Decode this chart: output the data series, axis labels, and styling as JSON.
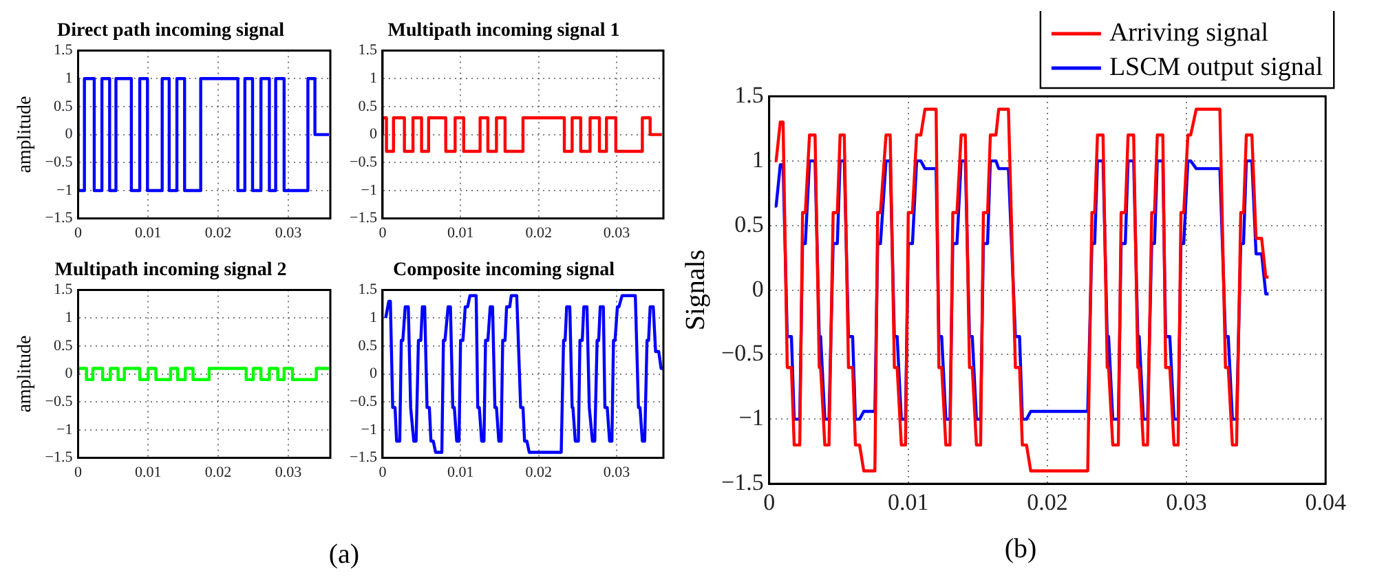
{
  "chart_data": [
    {
      "type": "step",
      "title": "Direct path incoming signal",
      "ylabel": "amplitude",
      "xlim": [
        0,
        0.036
      ],
      "xticks": [
        0,
        0.01,
        0.02,
        0.03
      ],
      "ylim": [
        -1.5,
        1.5
      ],
      "yticks": [
        -1.5,
        -1,
        -0.5,
        0,
        0.5,
        1,
        1.5
      ],
      "grid": true,
      "annotations": [
        "(a)"
      ],
      "x": [
        0,
        0.0009,
        0.0023,
        0.0034,
        0.0045,
        0.0054,
        0.0076,
        0.0088,
        0.0099,
        0.012,
        0.013,
        0.0141,
        0.0152,
        0.0175,
        0.0228,
        0.0238,
        0.0249,
        0.0261,
        0.0273,
        0.0282,
        0.0294,
        0.0328,
        0.0338,
        0.0349,
        0.0358
      ],
      "series": [
        {
          "color": "#0000ff",
          "values": [
            1,
            -1,
            1,
            -1,
            1,
            -1,
            1,
            -1,
            1,
            -1,
            1,
            -1,
            1,
            -1,
            1,
            -1,
            1,
            -1,
            1,
            -1,
            1,
            -1,
            1,
            0,
            0
          ]
        }
      ]
    },
    {
      "type": "step",
      "title": "Multipath incoming signal 1",
      "xlim": [
        0,
        0.036
      ],
      "xticks": [
        0,
        0.01,
        0.02,
        0.03
      ],
      "ylim": [
        -1.5,
        1.5
      ],
      "yticks": [
        -1.5,
        -1,
        -0.5,
        0,
        0.5,
        1,
        1.5
      ],
      "grid": true,
      "x": [
        0,
        0.0005,
        0.0014,
        0.0028,
        0.0039,
        0.005,
        0.0059,
        0.0081,
        0.0093,
        0.0104,
        0.0125,
        0.0135,
        0.0146,
        0.0157,
        0.018,
        0.0233,
        0.0243,
        0.0254,
        0.0266,
        0.0278,
        0.0287,
        0.0299,
        0.0333,
        0.0343,
        0.0354,
        0.0358
      ],
      "series": [
        {
          "color": "#ff0000",
          "values": [
            0,
            0.3,
            -0.3,
            0.3,
            -0.3,
            0.3,
            -0.3,
            0.3,
            -0.3,
            0.3,
            -0.3,
            0.3,
            -0.3,
            0.3,
            -0.3,
            0.3,
            -0.3,
            0.3,
            -0.3,
            0.3,
            -0.3,
            0.3,
            -0.3,
            0.3,
            0,
            0
          ]
        }
      ]
    },
    {
      "type": "step",
      "title": "Multipath incoming signal 2",
      "ylabel": "amplitude",
      "xlim": [
        0,
        0.036
      ],
      "xticks": [
        0,
        0.01,
        0.02,
        0.03
      ],
      "ylim": [
        -1.5,
        1.5
      ],
      "yticks": [
        -1.5,
        -1,
        -0.5,
        0,
        0.5,
        1,
        1.5
      ],
      "grid": true,
      "x": [
        0,
        0.0012,
        0.0021,
        0.0035,
        0.0046,
        0.0057,
        0.0066,
        0.0088,
        0.01,
        0.0111,
        0.0132,
        0.0142,
        0.0153,
        0.0164,
        0.0187,
        0.024,
        0.025,
        0.0261,
        0.0273,
        0.0285,
        0.0294,
        0.0306,
        0.034,
        0.035,
        0.0358
      ],
      "series": [
        {
          "color": "#00ff00",
          "values": [
            0,
            0.1,
            -0.1,
            0.1,
            -0.1,
            0.1,
            -0.1,
            0.1,
            -0.1,
            0.1,
            -0.1,
            0.1,
            -0.1,
            0.1,
            -0.1,
            0.1,
            -0.1,
            0.1,
            -0.1,
            0.1,
            -0.1,
            0.1,
            -0.1,
            0.1,
            0.1
          ]
        }
      ]
    },
    {
      "type": "line",
      "title": "Composite incoming signal",
      "xlim": [
        0,
        0.036
      ],
      "xticks": [
        0,
        0.01,
        0.02,
        0.03
      ],
      "ylim": [
        -1.5,
        1.5
      ],
      "yticks": [
        -1.5,
        -1,
        -0.5,
        0,
        0.5,
        1,
        1.5
      ],
      "grid": true,
      "x": [
        0.0004,
        0.0005,
        0.0008,
        0.001,
        0.0013,
        0.0016,
        0.0018,
        0.0022,
        0.0024,
        0.0026,
        0.0029,
        0.0033,
        0.0036,
        0.0037,
        0.004,
        0.0043,
        0.0046,
        0.0049,
        0.0051,
        0.0054,
        0.0057,
        0.006,
        0.0062,
        0.0065,
        0.0068,
        0.0076,
        0.0078,
        0.008,
        0.0084,
        0.0087,
        0.009,
        0.0092,
        0.0095,
        0.0098,
        0.01,
        0.0103,
        0.0106,
        0.0109,
        0.0112,
        0.012,
        0.0122,
        0.0124,
        0.0127,
        0.013,
        0.0132,
        0.0135,
        0.0138,
        0.0141,
        0.0144,
        0.0146,
        0.0149,
        0.0152,
        0.0154,
        0.0157,
        0.0159,
        0.0163,
        0.0165,
        0.0172,
        0.0177,
        0.018,
        0.0182,
        0.0185,
        0.0188,
        0.0229,
        0.0232,
        0.0234,
        0.0236,
        0.024,
        0.0243,
        0.0244,
        0.0247,
        0.0251,
        0.0253,
        0.0256,
        0.0258,
        0.0262,
        0.0265,
        0.0266,
        0.0269,
        0.0272,
        0.0275,
        0.0277,
        0.0279,
        0.0283,
        0.0285,
        0.0288,
        0.0291,
        0.0294,
        0.0296,
        0.0298,
        0.0301,
        0.0303,
        0.0307,
        0.0324,
        0.0328,
        0.033,
        0.0333,
        0.0336,
        0.0339,
        0.0341,
        0.0343,
        0.0347,
        0.035,
        0.0354,
        0.0357,
        0.0359
      ],
      "series": [
        {
          "color": "#0000ff",
          "values": [
            1,
            1,
            1.3,
            1.3,
            -0.6,
            -0.6,
            -1.2,
            -1.2,
            0.6,
            0.6,
            1.2,
            1.2,
            -0.6,
            -0.6,
            -1.2,
            -1.2,
            0.6,
            0.6,
            1.2,
            1.2,
            -0.6,
            -0.6,
            -1.2,
            -1.2,
            -1.4,
            -1.4,
            0.6,
            0.6,
            1.2,
            1.2,
            -0.6,
            -0.6,
            -1.2,
            -1.2,
            0.6,
            0.6,
            1.2,
            1.2,
            1.4,
            1.4,
            -0.6,
            -0.6,
            -1.2,
            -1.2,
            0.6,
            0.6,
            1.2,
            1.2,
            -0.6,
            -0.6,
            -1.2,
            -1.2,
            0.6,
            0.6,
            1.2,
            1.2,
            1.4,
            1.4,
            -0.6,
            -0.6,
            -1.2,
            -1.2,
            -1.4,
            -1.4,
            0.6,
            0.6,
            1.2,
            1.2,
            -0.6,
            -0.6,
            -1.2,
            -1.2,
            0.6,
            0.6,
            1.2,
            1.2,
            -0.6,
            -0.6,
            -1.2,
            -1.2,
            0.6,
            0.6,
            1.2,
            1.2,
            -0.6,
            -0.6,
            -1.2,
            -1.2,
            0.6,
            0.6,
            1.2,
            1.2,
            1.4,
            1.4,
            -0.6,
            -0.6,
            -1.2,
            -1.2,
            0.6,
            0.6,
            1.2,
            1.2,
            0.4,
            0.4,
            0.1,
            0.1
          ]
        }
      ]
    },
    {
      "type": "line",
      "ylabel": "Signals",
      "xlim": [
        0,
        0.04
      ],
      "xticks": [
        0,
        0.01,
        0.02,
        0.03,
        0.04
      ],
      "ylim": [
        -1.5,
        1.5
      ],
      "yticks": [
        -1.5,
        -1,
        -0.5,
        0,
        0.5,
        1,
        1.5
      ],
      "grid": true,
      "legend": "top right",
      "annotations": [
        "(b)"
      ],
      "x": [
        0.0004,
        0.0005,
        0.0008,
        0.001,
        0.0013,
        0.0016,
        0.0018,
        0.0022,
        0.0024,
        0.0026,
        0.0029,
        0.0033,
        0.0036,
        0.0037,
        0.004,
        0.0043,
        0.0046,
        0.0049,
        0.0051,
        0.0054,
        0.0057,
        0.006,
        0.0062,
        0.0065,
        0.0068,
        0.0076,
        0.0078,
        0.008,
        0.0084,
        0.0087,
        0.009,
        0.0092,
        0.0095,
        0.0098,
        0.01,
        0.0103,
        0.0106,
        0.0109,
        0.0112,
        0.012,
        0.0122,
        0.0124,
        0.0127,
        0.013,
        0.0132,
        0.0135,
        0.0138,
        0.0141,
        0.0144,
        0.0146,
        0.0149,
        0.0152,
        0.0154,
        0.0157,
        0.0159,
        0.0163,
        0.0165,
        0.0172,
        0.0177,
        0.018,
        0.0182,
        0.0185,
        0.0188,
        0.0229,
        0.0232,
        0.0234,
        0.0236,
        0.024,
        0.0243,
        0.0244,
        0.0247,
        0.0251,
        0.0253,
        0.0256,
        0.0258,
        0.0262,
        0.0265,
        0.0266,
        0.0269,
        0.0272,
        0.0275,
        0.0277,
        0.0279,
        0.0283,
        0.0285,
        0.0288,
        0.0291,
        0.0294,
        0.0296,
        0.0298,
        0.0301,
        0.0303,
        0.0307,
        0.0324,
        0.0328,
        0.033,
        0.0333,
        0.0336,
        0.0339,
        0.0341,
        0.0343,
        0.0347,
        0.035,
        0.0354,
        0.0357,
        0.0359
      ],
      "series": [
        {
          "name": "Arriving signal",
          "color": "#ff0000",
          "values": [
            1,
            1,
            1.3,
            1.3,
            -0.6,
            -0.6,
            -1.2,
            -1.2,
            0.6,
            0.6,
            1.2,
            1.2,
            -0.6,
            -0.6,
            -1.2,
            -1.2,
            0.6,
            0.6,
            1.2,
            1.2,
            -0.6,
            -0.6,
            -1.2,
            -1.2,
            -1.4,
            -1.4,
            0.6,
            0.6,
            1.2,
            1.2,
            -0.6,
            -0.6,
            -1.2,
            -1.2,
            0.6,
            0.6,
            1.2,
            1.2,
            1.4,
            1.4,
            -0.6,
            -0.6,
            -1.2,
            -1.2,
            0.6,
            0.6,
            1.2,
            1.2,
            -0.6,
            -0.6,
            -1.2,
            -1.2,
            0.6,
            0.6,
            1.2,
            1.2,
            1.4,
            1.4,
            -0.6,
            -0.6,
            -1.2,
            -1.2,
            -1.4,
            -1.4,
            0.6,
            0.6,
            1.2,
            1.2,
            -0.6,
            -0.6,
            -1.2,
            -1.2,
            0.6,
            0.6,
            1.2,
            1.2,
            -0.6,
            -0.6,
            -1.2,
            -1.2,
            0.6,
            0.6,
            1.2,
            1.2,
            -0.6,
            -0.6,
            -1.2,
            -1.2,
            0.6,
            0.6,
            1.2,
            1.2,
            1.4,
            1.4,
            -0.6,
            -0.6,
            -1.2,
            -1.2,
            0.6,
            0.6,
            1.2,
            1.2,
            0.4,
            0.4,
            0.1,
            0.1
          ]
        },
        {
          "name": "LSCM output signal",
          "color": "#0000ff",
          "values": [
            0.65,
            0.65,
            0.97,
            0.97,
            -0.36,
            -0.36,
            -1,
            -1,
            0.36,
            0.36,
            1,
            1,
            -0.36,
            -0.36,
            -1,
            -1,
            0.36,
            0.36,
            1,
            1,
            -0.36,
            -0.36,
            -1,
            -1,
            -0.94,
            -0.94,
            0.36,
            0.36,
            1,
            1,
            -0.36,
            -0.36,
            -1,
            -1,
            0.36,
            0.36,
            1,
            1,
            0.94,
            0.94,
            -0.36,
            -0.36,
            -1,
            -1,
            0.36,
            0.36,
            1,
            1,
            -0.36,
            -0.36,
            -1,
            -1,
            0.36,
            0.36,
            1,
            1,
            0.94,
            0.94,
            -0.36,
            -0.36,
            -1,
            -1,
            -0.94,
            -0.94,
            0.36,
            0.36,
            1,
            1,
            -0.36,
            -0.36,
            -1,
            -1,
            0.36,
            0.36,
            1,
            1,
            -0.36,
            -0.36,
            -1,
            -1,
            0.36,
            0.36,
            1,
            1,
            -0.36,
            -0.36,
            -1,
            -1,
            0.36,
            0.36,
            1,
            1,
            0.94,
            0.94,
            -0.36,
            -0.36,
            -1,
            -1,
            0.36,
            0.36,
            1,
            1,
            0.28,
            0.28,
            -0.03,
            -0.03
          ]
        }
      ]
    }
  ]
}
